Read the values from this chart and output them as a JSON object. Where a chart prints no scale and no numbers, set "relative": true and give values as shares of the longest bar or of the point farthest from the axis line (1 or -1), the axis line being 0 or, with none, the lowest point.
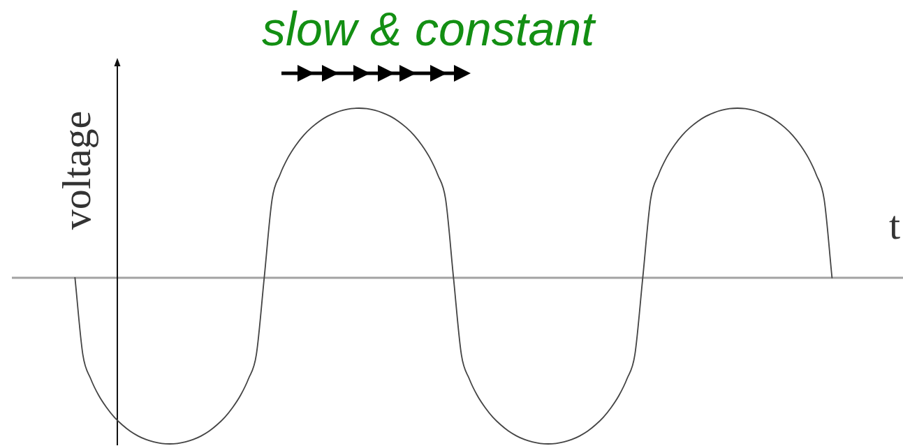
{
  "chart_data": {
    "type": "line",
    "title": "slow & constant",
    "xlabel": "t",
    "ylabel": "voltage",
    "relative": true,
    "tick_labels": false,
    "marker": "none",
    "color": "#444444",
    "categories": [
      null,
      null,
      null,
      null,
      null,
      null,
      null,
      null,
      null,
      null,
      null,
      null,
      null,
      null,
      null,
      null,
      null,
      null,
      null,
      null,
      null,
      null,
      null,
      null,
      null,
      null,
      null,
      null,
      null,
      null,
      null,
      null,
      null,
      null,
      null,
      null,
      null,
      null,
      null,
      null,
      null,
      null,
      null,
      null,
      null,
      null,
      null,
      null,
      null,
      null,
      null,
      null,
      null,
      null,
      null,
      null,
      null,
      null,
      null,
      null,
      null,
      null,
      null,
      null,
      null,
      null,
      null,
      null,
      null,
      null,
      null,
      null,
      null,
      null,
      null,
      null,
      null,
      null,
      null,
      null,
      null,
      null,
      null,
      null,
      null,
      null,
      null,
      null,
      null,
      null,
      null,
      null,
      null,
      null,
      null,
      null,
      null,
      null,
      null,
      null,
      null,
      null,
      null,
      null,
      null,
      null,
      null,
      null,
      null,
      null,
      null,
      null,
      null,
      null
    ],
    "values": [
      null,
      null,
      null,
      null,
      null,
      null,
      null,
      null,
      0,
      -0.454,
      -0.596,
      -0.693,
      -0.765,
      -0.823,
      -0.868,
      -0.905,
      -0.933,
      -0.954,
      -0.968,
      -0.977,
      -0.98,
      -0.977,
      -0.968,
      -0.954,
      -0.933,
      -0.905,
      -0.868,
      -0.823,
      -0.765,
      -0.693,
      -0.596,
      -0.454,
      0,
      0.463,
      0.608,
      0.707,
      0.781,
      0.84,
      0.886,
      0.923,
      0.952,
      0.973,
      0.988,
      0.997,
      1,
      0.997,
      0.988,
      0.973,
      0.952,
      0.923,
      0.886,
      0.84,
      0.781,
      0.707,
      0.608,
      0.463,
      0,
      -0.454,
      -0.596,
      -0.693,
      -0.765,
      -0.823,
      -0.868,
      -0.905,
      -0.933,
      -0.954,
      -0.968,
      -0.977,
      -0.98,
      -0.977,
      -0.968,
      -0.954,
      -0.933,
      -0.905,
      -0.868,
      -0.823,
      -0.765,
      -0.693,
      -0.596,
      -0.454,
      0,
      0.463,
      0.608,
      0.707,
      0.781,
      0.84,
      0.886,
      0.923,
      0.952,
      0.973,
      0.988,
      0.997,
      1,
      0.997,
      0.988,
      0.973,
      0.952,
      0.923,
      0.886,
      0.84,
      0.781,
      0.707,
      0.608,
      0.463,
      0,
      null,
      null,
      null,
      null,
      null,
      null,
      null,
      null,
      null
    ]
  }
}
